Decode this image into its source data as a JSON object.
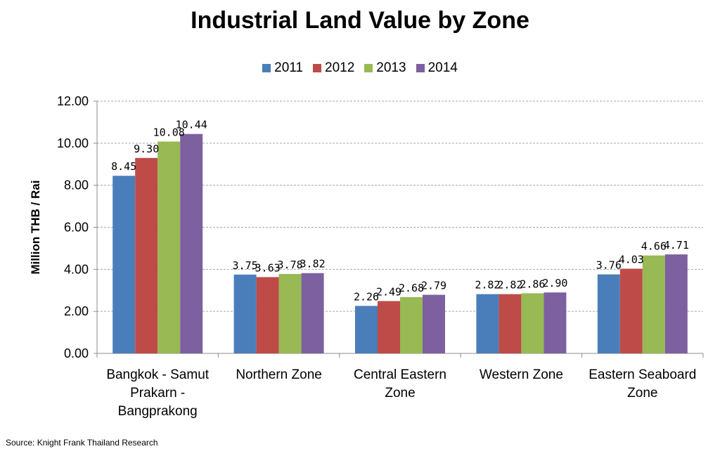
{
  "source": "Source: Knight Frank Thailand Research",
  "chart_data": {
    "type": "bar",
    "title": "Industrial Land Value by Zone",
    "xlabel": "",
    "ylabel": "Million THB / Rai",
    "ylim": [
      0,
      12
    ],
    "yticks": [
      "0.00",
      "2.00",
      "4.00",
      "6.00",
      "8.00",
      "10.00",
      "12.00"
    ],
    "grid": true,
    "legend_position": "top",
    "categories": [
      [
        "Bangkok - Samut",
        "Prakarn -",
        "Bangprakong"
      ],
      [
        "Northern Zone"
      ],
      [
        "Central Eastern",
        "Zone"
      ],
      [
        "Western Zone"
      ],
      [
        "Eastern Seaboard",
        "Zone"
      ]
    ],
    "series": [
      {
        "name": "2011",
        "color": "#4a7ebb",
        "values": [
          8.45,
          3.75,
          2.26,
          2.82,
          3.76
        ],
        "labels": [
          "8.45",
          "3.75",
          "2.26",
          "2.82",
          "3.76"
        ]
      },
      {
        "name": "2012",
        "color": "#be4b48",
        "values": [
          9.3,
          3.63,
          2.49,
          2.82,
          4.03
        ],
        "labels": [
          "9.30",
          "3.63",
          "2.49",
          "2.82",
          "4.03"
        ]
      },
      {
        "name": "2013",
        "color": "#98b954",
        "values": [
          10.08,
          3.78,
          2.68,
          2.86,
          4.66
        ],
        "labels": [
          "10.08",
          "3.78",
          "2.68",
          "2.86",
          "4.66"
        ]
      },
      {
        "name": "2014",
        "color": "#7d60a0",
        "values": [
          10.44,
          3.82,
          2.79,
          2.9,
          4.71
        ],
        "labels": [
          "10.44",
          "3.82",
          "2.79",
          "2.90",
          "4.71"
        ]
      }
    ]
  }
}
